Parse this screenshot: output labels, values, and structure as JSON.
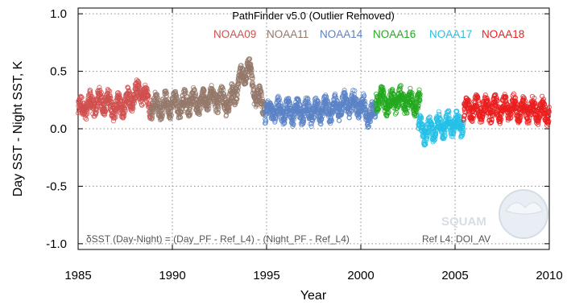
{
  "chart_data": {
    "type": "scatter",
    "title": "PathFinder v5.0 (Outlier Removed)",
    "xlabel": "Year",
    "ylabel": "Day SST - Night SST, K",
    "xlim": [
      1985,
      2010
    ],
    "ylim": [
      -1.05,
      1.05
    ],
    "xticks": [
      1985,
      1990,
      1995,
      2000,
      2005,
      2010
    ],
    "yticks": [
      -1.0,
      -0.5,
      0.0,
      0.5,
      1.0
    ],
    "xtick_labels": [
      "1985",
      "1990",
      "1995",
      "2000",
      "2005",
      "2010"
    ],
    "ytick_labels": [
      "-1.0",
      "-0.5",
      "0.0",
      "0.5",
      "1.0"
    ],
    "grid": true,
    "legend_position": "top",
    "annotation": "δSST (Day-Night) = (Day_PF - Ref_L4) - (Night_PF - Ref_L4)",
    "reference_note": "Ref L4: DOI_AV",
    "logo_text": "SQUAM",
    "series": [
      {
        "name": "NOAA09",
        "color": "#d0504f",
        "x_range": [
          1985.0,
          1988.85
        ],
        "anchors": [
          [
            1985.0,
            0.16
          ],
          [
            1985.5,
            0.2
          ],
          [
            1986.0,
            0.23
          ],
          [
            1986.5,
            0.24
          ],
          [
            1987.0,
            0.18
          ],
          [
            1987.5,
            0.22
          ],
          [
            1988.0,
            0.3
          ],
          [
            1988.4,
            0.33
          ],
          [
            1988.85,
            0.18
          ]
        ]
      },
      {
        "name": "NOAA11",
        "color": "#94786a",
        "x_range": [
          1988.85,
          1994.9
        ],
        "anchors": [
          [
            1988.85,
            0.2
          ],
          [
            1989.5,
            0.2
          ],
          [
            1990.0,
            0.22
          ],
          [
            1990.5,
            0.21
          ],
          [
            1991.0,
            0.24
          ],
          [
            1991.5,
            0.22
          ],
          [
            1992.0,
            0.28
          ],
          [
            1992.5,
            0.25
          ],
          [
            1993.0,
            0.22
          ],
          [
            1993.5,
            0.38
          ],
          [
            1994.0,
            0.55
          ],
          [
            1994.4,
            0.3
          ],
          [
            1994.9,
            0.2
          ]
        ]
      },
      {
        "name": "NOAA14",
        "color": "#5b82c5",
        "x_range": [
          1994.9,
          2000.8
        ],
        "anchors": [
          [
            1994.9,
            0.15
          ],
          [
            1995.5,
            0.16
          ],
          [
            1996.0,
            0.15
          ],
          [
            1996.5,
            0.15
          ],
          [
            1997.0,
            0.15
          ],
          [
            1997.5,
            0.15
          ],
          [
            1998.0,
            0.17
          ],
          [
            1998.5,
            0.17
          ],
          [
            1999.0,
            0.21
          ],
          [
            1999.5,
            0.22
          ],
          [
            2000.0,
            0.2
          ],
          [
            2000.5,
            0.12
          ],
          [
            2000.8,
            0.14
          ]
        ]
      },
      {
        "name": "NOAA16",
        "color": "#22a81e",
        "x_range": [
          2000.8,
          2003.15
        ],
        "anchors": [
          [
            2000.8,
            0.28
          ],
          [
            2001.5,
            0.22
          ],
          [
            2002.0,
            0.26
          ],
          [
            2002.5,
            0.23
          ],
          [
            2003.15,
            0.22
          ]
        ]
      },
      {
        "name": "NOAA17",
        "color": "#24c0e6",
        "x_range": [
          2003.05,
          2005.45
        ],
        "anchors": [
          [
            2003.05,
            0.02
          ],
          [
            2003.5,
            -0.03
          ],
          [
            2004.0,
            0.02
          ],
          [
            2004.5,
            0.03
          ],
          [
            2005.0,
            0.05
          ],
          [
            2005.45,
            0.02
          ]
        ]
      },
      {
        "name": "NOAA18",
        "color": "#ea1f1f",
        "x_range": [
          2005.45,
          2010.0
        ],
        "anchors": [
          [
            2005.45,
            0.16
          ],
          [
            2006.0,
            0.18
          ],
          [
            2007.0,
            0.17
          ],
          [
            2008.0,
            0.18
          ],
          [
            2009.0,
            0.17
          ],
          [
            2010.0,
            0.15
          ]
        ]
      }
    ]
  }
}
